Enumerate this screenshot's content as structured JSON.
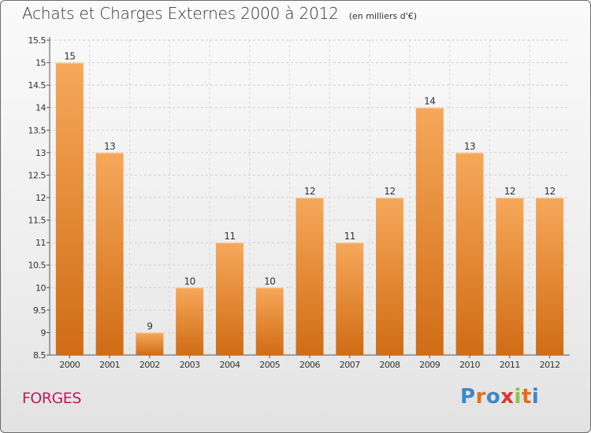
{
  "header": {
    "title": "Achats et Charges Externes 2000 à 2012",
    "subtitle": "(en milliers d'€)"
  },
  "footer": {
    "commune": "FORGES",
    "brand": "Proxiti"
  },
  "colors": {
    "bar_top": "#f6a85a",
    "bar_bottom": "#d06c15",
    "commune": "#c2185b",
    "brand_letters": [
      "#3f87c8",
      "#e0701d",
      "#3f87c8",
      "#e3342f",
      "#8bc34a",
      "#e0701d",
      "#3f87c8"
    ]
  },
  "chart_data": {
    "type": "bar",
    "categories": [
      "2000",
      "2001",
      "2002",
      "2003",
      "2004",
      "2005",
      "2006",
      "2007",
      "2008",
      "2009",
      "2010",
      "2011",
      "2012"
    ],
    "values": [
      15,
      13,
      9,
      10,
      11,
      10,
      12,
      11,
      12,
      14,
      13,
      12,
      12
    ],
    "value_labels": [
      "15",
      "13",
      "9",
      "10",
      "11",
      "10",
      "12",
      "11",
      "12",
      "14",
      "13",
      "12",
      "12"
    ],
    "title": "Achats et Charges Externes 2000 à 2012",
    "subtitle": "(en milliers d'€)",
    "xlabel": "",
    "ylabel": "",
    "ylim": [
      8.5,
      15.5
    ],
    "yticks": [
      "8.5",
      "9",
      "9.5",
      "10",
      "10.5",
      "11",
      "11.5",
      "12",
      "12.5",
      "13",
      "13.5",
      "14",
      "14.5",
      "15",
      "15.5"
    ],
    "grid": true,
    "legend": "none"
  }
}
